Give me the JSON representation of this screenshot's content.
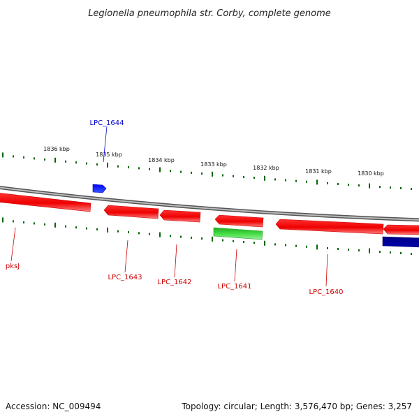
{
  "title": "Legionella pneumophila str. Corby, complete genome",
  "accession": "Accession: NC_009494",
  "summary": "Topology: circular; Length: 3,576,470 bp; Genes: 3,257",
  "ticks": [
    "1836 kbp",
    "1835 kbp",
    "1834 kbp",
    "1833 kbp",
    "1832 kbp",
    "1831 kbp",
    "1830 kbp"
  ],
  "genes": [
    {
      "label": "LPC_1644",
      "color": "#0000cc"
    },
    {
      "label": "pksJ",
      "color": "#cc0000"
    },
    {
      "label": "LPC_1643",
      "color": "#cc0000"
    },
    {
      "label": "LPC_1642",
      "color": "#cc0000"
    },
    {
      "label": "LPC_1641",
      "color": "#cc0000"
    },
    {
      "label": "LPC_1640",
      "color": "#cc0000"
    }
  ],
  "colors": {
    "forward_gene": "#ff0000",
    "reverse_gene_dark": "#cc0000",
    "rna_gene": "#33cc33",
    "highlight_gene": "#0000ff",
    "navy_gene": "#000080",
    "tick": "#006600",
    "backbone": "#888888"
  }
}
